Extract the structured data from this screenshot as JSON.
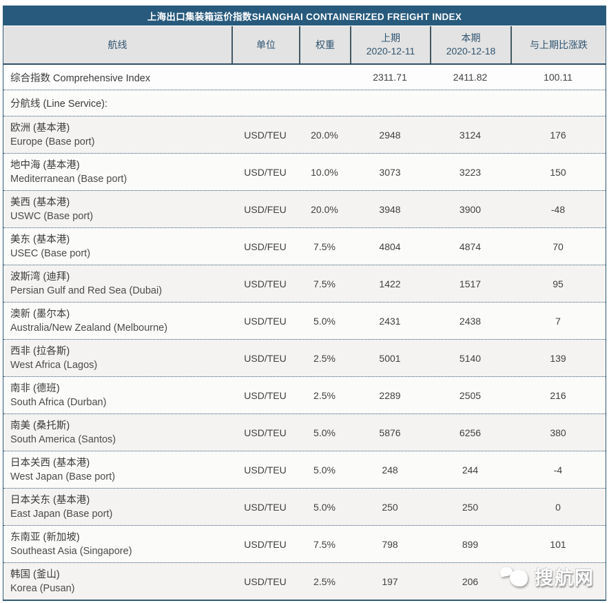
{
  "chart_data": {
    "type": "table",
    "title": "上海出口集装箱运价指数SHANGHAI CONTAINERIZED FREIGHT INDEX",
    "columns": {
      "route": "航线",
      "unit": "单位",
      "weight": "权重",
      "prev_label": "上期",
      "prev_date": "2020-12-11",
      "curr_label": "本期",
      "curr_date": "2020-12-18",
      "change": "与上期比涨跌"
    },
    "comprehensive_row": {
      "name": "综合指数 Comprehensive Index",
      "prev": "2311.71",
      "curr": "2411.82",
      "change": "100.11"
    },
    "section_row": "分航线 (Line Service):",
    "rows": [
      {
        "name_cn": "欧洲 (基本港)",
        "name_en": "Europe (Base port)",
        "unit": "USD/TEU",
        "weight": "20.0%",
        "prev": "2948",
        "curr": "3124",
        "change": "176"
      },
      {
        "name_cn": "地中海 (基本港)",
        "name_en": "Mediterranean (Base port)",
        "unit": "USD/TEU",
        "weight": "10.0%",
        "prev": "3073",
        "curr": "3223",
        "change": "150"
      },
      {
        "name_cn": "美西 (基本港)",
        "name_en": "USWC (Base port)",
        "unit": "USD/FEU",
        "weight": "20.0%",
        "prev": "3948",
        "curr": "3900",
        "change": "-48"
      },
      {
        "name_cn": "美东 (基本港)",
        "name_en": "USEC (Base port)",
        "unit": "USD/FEU",
        "weight": "7.5%",
        "prev": "4804",
        "curr": "4874",
        "change": "70"
      },
      {
        "name_cn": "波斯湾 (迪拜)",
        "name_en": "Persian Gulf and Red Sea (Dubai)",
        "unit": "USD/TEU",
        "weight": "7.5%",
        "prev": "1422",
        "curr": "1517",
        "change": "95"
      },
      {
        "name_cn": "澳新 (墨尔本)",
        "name_en": "Australia/New Zealand (Melbourne)",
        "unit": "USD/TEU",
        "weight": "5.0%",
        "prev": "2431",
        "curr": "2438",
        "change": "7"
      },
      {
        "name_cn": "西非 (拉各斯)",
        "name_en": "West Africa (Lagos)",
        "unit": "USD/TEU",
        "weight": "2.5%",
        "prev": "5001",
        "curr": "5140",
        "change": "139"
      },
      {
        "name_cn": "南非 (德班)",
        "name_en": "South Africa (Durban)",
        "unit": "USD/TEU",
        "weight": "2.5%",
        "prev": "2289",
        "curr": "2505",
        "change": "216"
      },
      {
        "name_cn": "南美 (桑托斯)",
        "name_en": "South America (Santos)",
        "unit": "USD/TEU",
        "weight": "5.0%",
        "prev": "5876",
        "curr": "6256",
        "change": "380"
      },
      {
        "name_cn": "日本关西 (基本港)",
        "name_en": "West Japan (Base port)",
        "unit": "USD/TEU",
        "weight": "5.0%",
        "prev": "248",
        "curr": "244",
        "change": "-4"
      },
      {
        "name_cn": "日本关东 (基本港)",
        "name_en": "East Japan (Base port)",
        "unit": "USD/TEU",
        "weight": "5.0%",
        "prev": "250",
        "curr": "250",
        "change": "0"
      },
      {
        "name_cn": "东南亚 (新加坡)",
        "name_en": "Southeast Asia (Singapore)",
        "unit": "USD/TEU",
        "weight": "7.5%",
        "prev": "798",
        "curr": "899",
        "change": "101"
      },
      {
        "name_cn": "韩国 (釜山)",
        "name_en": "Korea (Pusan)",
        "unit": "USD/TEU",
        "weight": "2.5%",
        "prev": "197",
        "curr": "206",
        "change": ""
      }
    ]
  },
  "watermark": {
    "text": "搜航网"
  },
  "colors": {
    "title_bar_bg": "#275a7c",
    "header_bg": "#e3e3e3",
    "header_text": "#2f5470",
    "header_divider": "#415862",
    "row_separator": "#33526f",
    "body_text": "#3f3f3f",
    "outer_border": "#2e5a74"
  }
}
